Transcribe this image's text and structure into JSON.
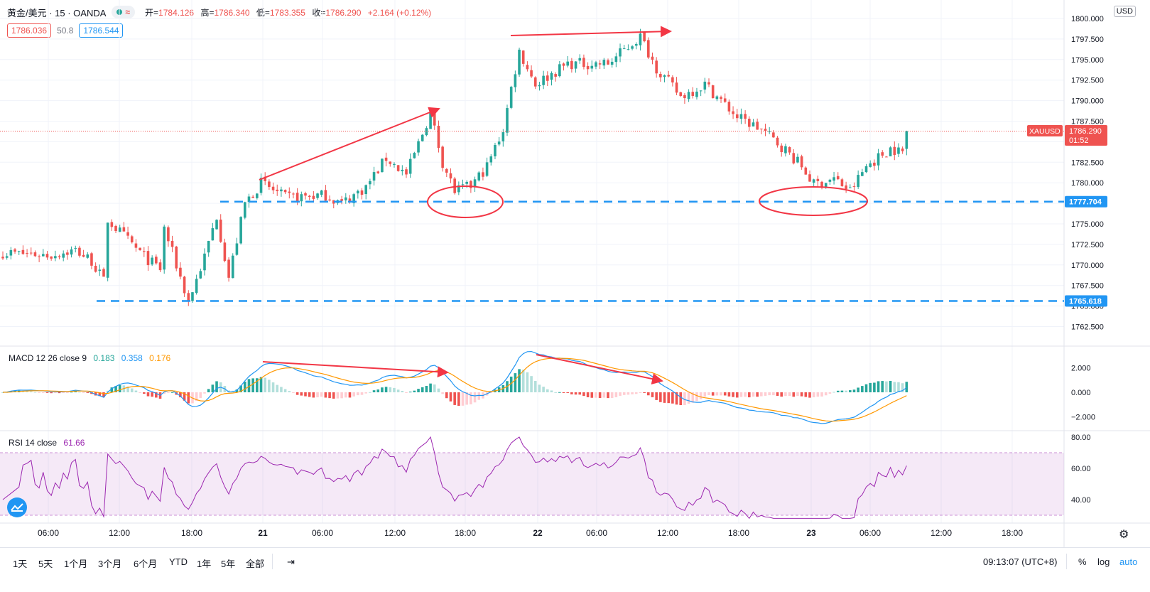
{
  "legend": {
    "symbol": "黄金/美元 · 15 · OANDA",
    "ohlc": [
      {
        "label": "开",
        "value": "1784.126"
      },
      {
        "label": "高",
        "value": "1786.340"
      },
      {
        "label": "低",
        "value": "1783.355"
      },
      {
        "label": "收",
        "value": "1786.290"
      }
    ],
    "change": "+2.164 (+0.12%)",
    "bid": "1786.036",
    "spread": "50.8",
    "ask": "1786.544"
  },
  "price_axis": {
    "currency": "USD",
    "ticks": [
      "1800.000",
      "1797.500",
      "1795.000",
      "1792.500",
      "1790.000",
      "1787.500",
      "1785.000",
      "1782.500",
      "1780.000",
      "1777.500",
      "1775.000",
      "1772.500",
      "1770.000",
      "1767.500",
      "1765.000",
      "1762.500"
    ],
    "symbol_tag": "XAUUSD",
    "last_price": "1786.290",
    "countdown": "01:52",
    "levels": [
      "1777.704",
      "1765.618"
    ]
  },
  "macd": {
    "legend": "MACD 12 26 close 9",
    "values": [
      "0.183",
      "0.358",
      "0.176"
    ],
    "ticks": [
      "2.000",
      "0.000",
      "−2.000"
    ]
  },
  "rsi": {
    "legend": "RSI 14 close",
    "value": "61.66",
    "ticks": [
      "80.00",
      "60.00",
      "40.00"
    ]
  },
  "time_axis": [
    "06:00",
    "12:00",
    "18:00",
    "21",
    "06:00",
    "12:00",
    "18:00",
    "22",
    "06:00",
    "12:00",
    "18:00",
    "23",
    "06:00",
    "12:00",
    "18:00"
  ],
  "toolbar": {
    "timeframes": [
      "1天",
      "5天",
      "1个月",
      "3个月",
      "6个月",
      "YTD",
      "1年",
      "5年",
      "全部"
    ],
    "clock": "09:13:07 (UTC+8)",
    "percent": "%",
    "log": "log",
    "auto": "auto"
  },
  "colors": {
    "up": "#26a69a",
    "down": "#ef5350",
    "macd": "#2196f3",
    "signal": "#ff9800",
    "rsi": "#9c27b0",
    "level": "#2196f3",
    "annotation": "#f23645"
  },
  "chart_data": [
    {
      "type": "candlestick",
      "symbol": "XAUUSD",
      "interval": "15",
      "ylim": [
        1761.0,
        1802.0
      ],
      "levels": [
        1777.704,
        1765.618
      ],
      "last": 1786.29
    },
    {
      "type": "line",
      "title": "MACD 12 26 close 9",
      "ylim": [
        -3.0,
        3.5
      ]
    },
    {
      "type": "line",
      "title": "RSI 14 close",
      "ylim": [
        25,
        82
      ],
      "band": [
        30,
        70
      ]
    }
  ]
}
